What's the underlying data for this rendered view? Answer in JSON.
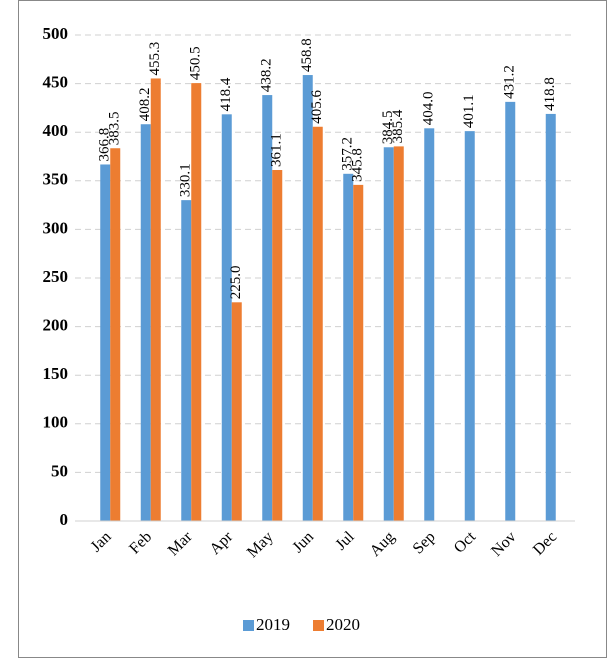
{
  "chart_data": {
    "type": "bar",
    "categories": [
      "Jan",
      "Feb",
      "Mar",
      "Apr",
      "May",
      "Jun",
      "Jul",
      "Aug",
      "Sep",
      "Oct",
      "Nov",
      "Dec"
    ],
    "series": [
      {
        "name": "2019",
        "color": "#5b9bd5",
        "values": [
          366.8,
          408.2,
          330.1,
          418.4,
          438.2,
          458.8,
          357.2,
          384.5,
          404.0,
          401.1,
          431.2,
          418.8
        ],
        "value_labels": [
          "366.8",
          "408.2",
          "330.1",
          "418.4",
          "438.2",
          "458.8",
          "357.2",
          "384.5",
          "404.0",
          "401.1",
          "431.2",
          "418.8"
        ]
      },
      {
        "name": "2020",
        "color": "#ed7d31",
        "values": [
          383.5,
          455.3,
          450.5,
          225.0,
          361.1,
          405.6,
          345.8,
          385.4,
          null,
          null,
          null,
          null
        ],
        "value_labels": [
          "383.5",
          "455.3",
          "450.5",
          "225.0",
          "361.1",
          "405.6",
          "345.8",
          "385.4",
          null,
          null,
          null,
          null
        ]
      }
    ],
    "ylim": [
      0,
      500
    ],
    "yticks": [
      0,
      50,
      100,
      150,
      200,
      250,
      300,
      350,
      400,
      450,
      500
    ],
    "grid": true,
    "legend": "bottom"
  }
}
